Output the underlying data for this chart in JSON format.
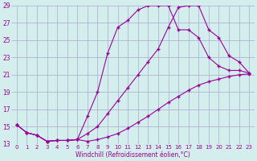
{
  "xlabel": "Windchill (Refroidissement éolien,°C)",
  "bg_color": "#d4eeee",
  "grid_color": "#aaaacc",
  "line_color": "#990099",
  "xlim": [
    -0.5,
    23.5
  ],
  "ylim": [
    13,
    29
  ],
  "xticks": [
    0,
    1,
    2,
    3,
    4,
    5,
    6,
    7,
    8,
    9,
    10,
    11,
    12,
    13,
    14,
    15,
    16,
    17,
    18,
    19,
    20,
    21,
    22,
    23
  ],
  "yticks": [
    13,
    15,
    17,
    19,
    21,
    23,
    25,
    27,
    29
  ],
  "series1_x": [
    0,
    1,
    2,
    3,
    4,
    5,
    6,
    7,
    8,
    9,
    10,
    11,
    12,
    13,
    14,
    15,
    16,
    17,
    18,
    19,
    20,
    21,
    22,
    23
  ],
  "series1_y": [
    15.2,
    14.3,
    14.0,
    13.3,
    13.4,
    13.4,
    13.5,
    13.3,
    13.5,
    13.8,
    14.2,
    14.8,
    15.5,
    16.2,
    17.0,
    17.8,
    18.5,
    19.2,
    19.8,
    20.2,
    20.5,
    20.8,
    21.0,
    21.1
  ],
  "series2_x": [
    0,
    1,
    2,
    3,
    4,
    5,
    6,
    7,
    8,
    9,
    10,
    11,
    12,
    13,
    14,
    15,
    16,
    17,
    18,
    19,
    20,
    21,
    22,
    23
  ],
  "series2_y": [
    15.2,
    14.3,
    14.0,
    13.3,
    13.4,
    13.4,
    13.5,
    14.2,
    15.0,
    16.5,
    18.0,
    19.5,
    21.0,
    22.5,
    24.0,
    26.5,
    28.8,
    29.0,
    29.0,
    26.2,
    25.3,
    23.2,
    22.5,
    21.2
  ],
  "series3_x": [
    0,
    1,
    2,
    3,
    4,
    5,
    6,
    7,
    8,
    9,
    10,
    11,
    12,
    13,
    14,
    15,
    16,
    17,
    18,
    19,
    20,
    21,
    22,
    23
  ],
  "series3_y": [
    15.2,
    14.3,
    14.0,
    13.3,
    13.4,
    13.4,
    13.5,
    16.2,
    19.0,
    23.5,
    26.5,
    27.3,
    28.5,
    29.0,
    29.0,
    29.0,
    26.2,
    26.2,
    25.3,
    23.0,
    22.0,
    21.5,
    21.5,
    21.2
  ]
}
